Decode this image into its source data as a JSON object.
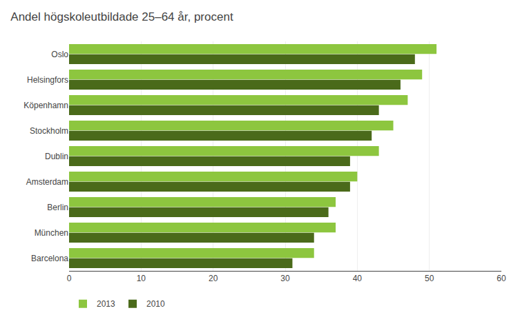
{
  "chart_data": {
    "type": "bar",
    "orientation": "horizontal",
    "title": "Andel högskoleutbildade 25–64 år, procent",
    "categories": [
      "Oslo",
      "Helsingfors",
      "Köpenhamn",
      "Stockholm",
      "Dublin",
      "Amsterdam",
      "Berlin",
      "München",
      "Barcelona"
    ],
    "series": [
      {
        "name": "2013",
        "color": "#8dc63f",
        "values": [
          51,
          49,
          47,
          45,
          43,
          40,
          37,
          37,
          34
        ]
      },
      {
        "name": "2010",
        "color": "#4a6a1a",
        "values": [
          48,
          46,
          43,
          42,
          39,
          39,
          36,
          34,
          31
        ]
      }
    ],
    "xlim": [
      0,
      60
    ],
    "xticks": [
      0,
      10,
      20,
      30,
      40,
      50,
      60
    ],
    "grid": true,
    "legend": "lower left"
  }
}
